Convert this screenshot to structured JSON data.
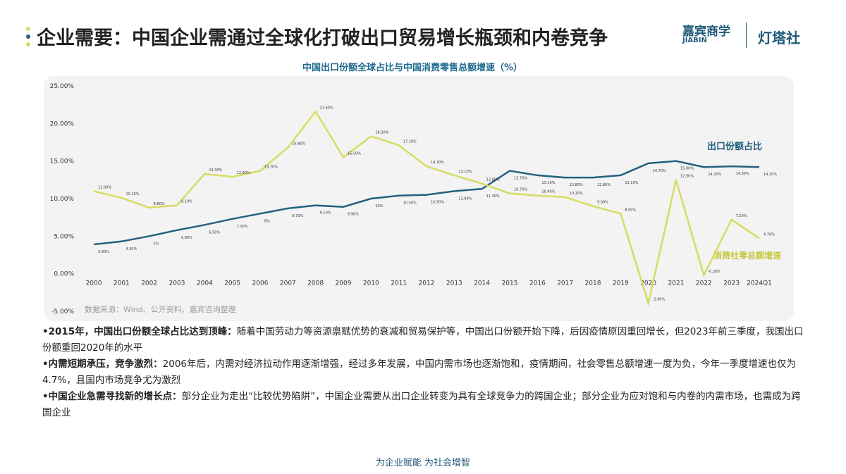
{
  "header": {
    "title": "企业需要：中国企业需通过全球化打破出口贸易增长瓶颈和内卷竞争",
    "logo_1": "嘉宾商学",
    "logo_1_sub": "JIABIN",
    "logo_2": "灯塔社"
  },
  "chart_data": {
    "type": "line",
    "title": "中国出口份额全球占比与中国消费零售总额增速（%）",
    "categories": [
      "2000",
      "2001",
      "2002",
      "2003",
      "2004",
      "2005",
      "2006",
      "2007",
      "2008",
      "2009",
      "2010",
      "2011",
      "2012",
      "2013",
      "2014",
      "2015",
      "2016",
      "2017",
      "2018",
      "2019",
      "2020",
      "2021",
      "2022",
      "2023",
      "2024Q1"
    ],
    "series": [
      {
        "name": "出口份额占比",
        "color": "#23617f",
        "values": [
          3.9,
          4.3,
          5.0,
          5.8,
          6.5,
          7.3,
          8.0,
          8.7,
          9.1,
          8.9,
          10.0,
          10.4,
          10.5,
          11.0,
          11.3,
          13.7,
          13.1,
          12.8,
          12.8,
          13.1,
          14.7,
          15.0,
          14.2,
          14.3,
          14.2
        ],
        "value_labels": [
          "3.90%",
          "4.30%",
          "5%",
          "5.80%",
          "6.50%",
          "7.30%",
          "8%",
          "8.70%",
          "9.10%",
          "8.90%",
          "10%",
          "10.40%",
          "10.50%",
          "11.00%",
          "11.30%",
          "13.70%",
          "13.10%",
          "12.80%",
          "12.80%",
          "13.10%",
          "14.70%",
          "15.00%",
          "14.20%",
          "14.30%",
          "14.20%"
        ]
      },
      {
        "name": "消费社零总额增速",
        "color": "#d6dc62",
        "values": [
          11.0,
          10.1,
          8.8,
          9.1,
          13.3,
          12.9,
          13.7,
          16.8,
          21.6,
          15.5,
          18.3,
          17.1,
          14.3,
          13.1,
          12.0,
          10.7,
          10.4,
          10.2,
          9.0,
          8.0,
          -3.9,
          12.5,
          -0.2,
          7.2,
          4.7
        ],
        "value_labels": [
          "11.00%",
          "10.10%",
          "8.80%",
          "9.10%",
          "13.30%",
          "12.90%",
          "13.70%",
          "16.80%",
          "21.60%",
          "15.50%",
          "18.30%",
          "17.10%",
          "14.30%",
          "13.10%",
          "12.00%",
          "10.70%",
          "10.40%",
          "10.20%",
          "9.00%",
          "8.00%",
          "-3.90%",
          "12.50%",
          "-0.20%",
          "7.20%",
          "4.70%"
        ]
      }
    ],
    "ylim": [
      -5,
      25
    ],
    "yticks": [
      {
        "value": -5,
        "label": "-5.00%"
      },
      {
        "value": 0,
        "label": "0.00%"
      },
      {
        "value": 5,
        "label": "5.00%"
      },
      {
        "value": 10,
        "label": "10.00%"
      },
      {
        "value": 15,
        "label": "15.00%"
      },
      {
        "value": 20,
        "label": "20.00%"
      },
      {
        "value": 25,
        "label": "25.00%"
      }
    ],
    "source": "数据来源：Wind、公开资料、嘉宾咨询整理"
  },
  "bullets": [
    {
      "lead": "•2015年，中国出口份额全球占比达到顶峰：",
      "text": "随着中国劳动力等资源禀赋优势的衰减和贸易保护等，中国出口份额开始下降，后因疫情原因重回增长，但2023年前三季度，我国出口份额重回2020年的水平"
    },
    {
      "lead": "•内需短期承压，竞争激烈：",
      "text": "2006年后，内需对经济拉动作用逐渐增强，经过多年发展，中国内需市场也逐渐饱和，疫情期间，社会零售总额增速一度为负，今年一季度增速也仅为4.7%，且国内市场竞争尤为激烈"
    },
    {
      "lead": "•中国企业急需寻找新的增长点：",
      "text": "部分企业为走出“比较优势陷阱”，中国企业需要从出口企业转变为具有全球竞争力的跨国企业；部分企业为应对饱和与内卷的内需市场，也需成为跨国企业"
    }
  ],
  "footer": "为企业赋能  为社会增智"
}
